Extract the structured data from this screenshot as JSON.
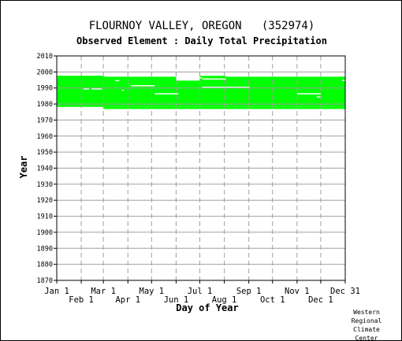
{
  "chart_data": {
    "type": "heatmap",
    "title": "FLOURNOY VALLEY, OREGON   (352974)",
    "subtitle": "Observed Element : Daily Total Precipitation",
    "xlabel": "Day of Year",
    "ylabel": "Year",
    "ylim": [
      1870,
      2010
    ],
    "xlim_day": [
      1,
      366
    ],
    "y_ticks": [
      1870,
      1880,
      1890,
      1900,
      1910,
      1920,
      1930,
      1940,
      1950,
      1960,
      1970,
      1980,
      1990,
      2000,
      2010
    ],
    "x_ticks_upper": [
      {
        "label": "Jan 1",
        "day": 1
      },
      {
        "label": "Mar 1",
        "day": 60
      },
      {
        "label": "May 1",
        "day": 121
      },
      {
        "label": "Jul 1",
        "day": 182
      },
      {
        "label": "Sep 1",
        "day": 244
      },
      {
        "label": "Nov 1",
        "day": 305
      },
      {
        "label": "Dec 31",
        "day": 366
      }
    ],
    "x_ticks_lower": [
      {
        "label": "Feb 1",
        "day": 32
      },
      {
        "label": "Apr 1",
        "day": 91
      },
      {
        "label": "Jun 1",
        "day": 152
      },
      {
        "label": "Aug 1",
        "day": 213
      },
      {
        "label": "Oct 1",
        "day": 274
      },
      {
        "label": "Dec 1",
        "day": 335
      }
    ],
    "grid": true,
    "observed_color": "#00ff00",
    "observed_periods": [
      {
        "start_year": 1978.2,
        "start_day": 1,
        "end_year": 1998.2,
        "end_day": 366
      }
    ],
    "missing_gaps": [
      {
        "year": 1977.3,
        "start_day": 1,
        "end_day": 60
      },
      {
        "year": 1998.0,
        "start_day": 1,
        "end_day": 366
      },
      {
        "year": 1997.4,
        "start_day": 60,
        "end_day": 366
      },
      {
        "year": 1996.4,
        "start_day": 155,
        "end_day": 185
      },
      {
        "year": 1995.6,
        "start_day": 185,
        "end_day": 215
      },
      {
        "year": 1994.6,
        "start_day": 75,
        "end_day": 80
      },
      {
        "year": 1994.7,
        "start_day": 362,
        "end_day": 366
      },
      {
        "year": 1991.4,
        "start_day": 95,
        "end_day": 125
      },
      {
        "year": 1990.4,
        "start_day": 185,
        "end_day": 245
      },
      {
        "year": 1989.4,
        "start_day": 35,
        "end_day": 42
      },
      {
        "year": 1989.4,
        "start_day": 45,
        "end_day": 58
      },
      {
        "year": 1988.5,
        "start_day": 83,
        "end_day": 86
      },
      {
        "year": 1986.4,
        "start_day": 125,
        "end_day": 155
      },
      {
        "year": 1986.4,
        "start_day": 305,
        "end_day": 335
      },
      {
        "year": 1984.4,
        "start_day": 330,
        "end_day": 335
      }
    ],
    "credit": [
      "Western",
      "Regional",
      "Climate",
      "Center"
    ]
  }
}
